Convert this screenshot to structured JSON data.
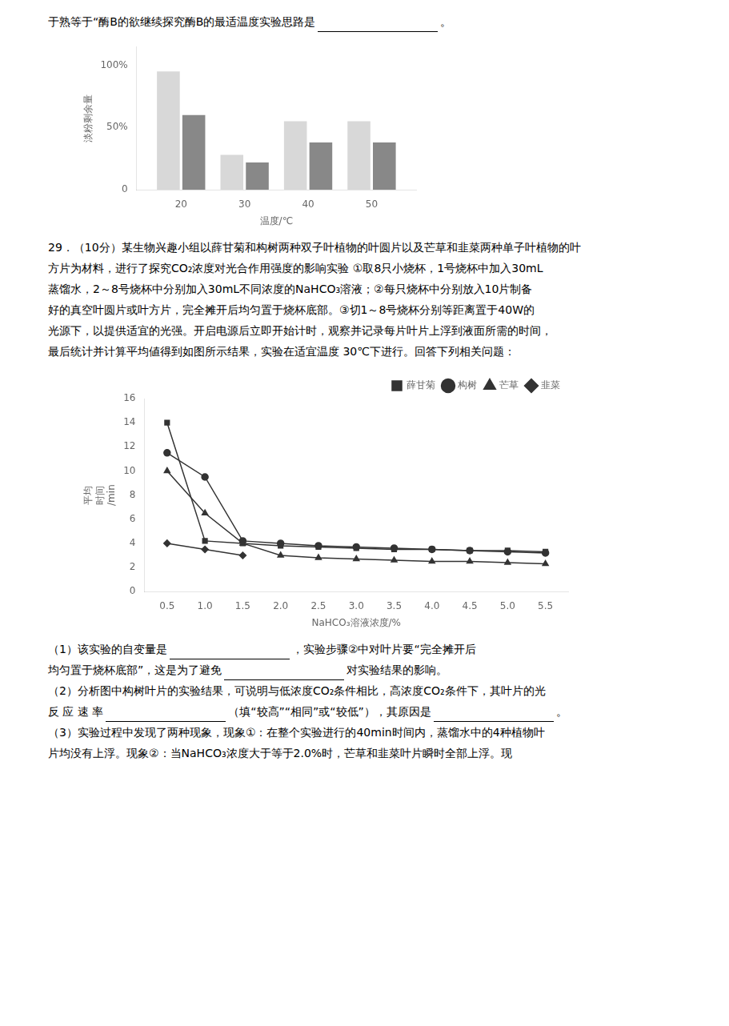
{
  "chart_data": [
    {
      "type": "bar",
      "x": [
        20,
        30,
        40,
        50
      ],
      "series": [
        {
          "color": "#d8d8d8",
          "values": [
            95,
            28,
            55,
            55
          ]
        },
        {
          "color": "#888888",
          "values": [
            60,
            22,
            38,
            38
          ]
        }
      ],
      "xlim": [
        13,
        57
      ],
      "xticks": [
        20,
        30,
        40,
        50
      ],
      "ylim": [
        0,
        115
      ],
      "yticks": [
        0,
        {
          "value": 50,
          "label": "50%"
        },
        {
          "value": 100,
          "label": "100%"
        }
      ],
      "xlabel": "温度/℃",
      "ylabel": "淡粉剩余量",
      "annotations": [
        [
          "于熟等于“酶B的欲继续探究酶B的最适温度实验思路是",
          "。"
        ],
        [
          "29．（10分）某生物兴趣小组以薛甘菊和构树两种双子叶植物的叶圆片以及芒草和韭菜两种单子叶植物的叶"
        ],
        [
          "方片为材料，进行了探究CO₂浓度对光合作用强度的影响实验 ①取8只小烧杯，1号烧杯中加入30mL"
        ],
        [
          "蒸馏水，2～8号烧杯中分别加入30mL不同浓度的NaHCO₃溶液；②每只烧杯中分别放入10片制备"
        ],
        [
          "好的真空叶圆片或叶方片，完全摊开后均匀置于烧杯底部。③切1～8号烧杯分别等距离置于40W的"
        ],
        [
          "光源下，以提供适宜的光强。开启电源后立即开始计时，观察并记录每片叶片上浮到液面所需的时间，"
        ],
        [
          "最后统计并计算平均値得到如图所示结果，实验在适宜温度 30℃下进行。回答下列相关问题："
        ]
      ]
    },
    {
      "type": "line",
      "x": [
        0.5,
        1.0,
        1.5,
        2.0,
        2.5,
        3.0,
        3.5,
        4.0,
        4.5,
        5.0,
        5.5
      ],
      "series": [
        {
          "name": "薛甘菊",
          "color": "#333333",
          "marker": "square",
          "values": [
            14.0,
            4.2,
            4.0,
            3.8,
            3.7,
            3.6,
            3.5,
            3.5,
            3.4,
            3.4,
            3.3
          ]
        },
        {
          "name": "构树",
          "color": "#333333",
          "marker": "circle",
          "values": [
            11.5,
            9.5,
            4.2,
            4.0,
            3.8,
            3.7,
            3.6,
            3.5,
            3.4,
            3.3,
            3.2
          ]
        },
        {
          "name": "芒草",
          "color": "#333333",
          "marker": "triangle",
          "values": [
            10.0,
            6.5,
            4.0,
            3.0,
            2.8,
            2.7,
            2.6,
            2.5,
            2.5,
            2.4,
            2.3
          ]
        },
        {
          "name": "韭菜",
          "color": "#333333",
          "marker": "diamond",
          "values": [
            4.0,
            3.5,
            3.0,
            null,
            null,
            null,
            null,
            null,
            null,
            null,
            null
          ]
        }
      ],
      "xlim": [
        0.2,
        5.8
      ],
      "xticks": [
        0.5,
        {
          "value": 1.0,
          "label": "1.0"
        },
        1.5,
        {
          "value": 2.0,
          "label": "2.0"
        },
        2.5,
        {
          "value": 3.0,
          "label": "3.0"
        },
        3.5,
        {
          "value": 4.0,
          "label": "4.0"
        },
        4.5,
        {
          "value": 5.0,
          "label": "5.0"
        },
        5.5
      ],
      "ylim": [
        0,
        16
      ],
      "yticks": [
        0,
        2,
        4,
        6,
        8,
        10,
        12,
        14,
        16
      ],
      "xlabel": "NaHCO₃溶液浓度/%",
      "ylabel": "平均\n时间\n/min",
      "legend": "upper right",
      "annotations": [
        [
          "（1）该实验的自变量是",
          "，实验步骤②中对叶片要“完全摊开后"
        ],
        [
          "均匀置于烧杯底部”，这是为了避免",
          "对实验结果的影响。"
        ],
        [
          "（2）分析图中构树叶片的实验结果，可说明与低浓度CO₂条件相比，高浓度CO₂条件下，其叶片的光"
        ],
        [
          "反 应 速 率",
          "（填“较高”“相同”或“较低”），其原因是",
          "。"
        ],
        [
          "（3）实验过程中发现了两种现象，现象①：在整个实验进行的40min时间内，蒸馏水中的4种植物叶"
        ],
        [
          "片均没有上浮。现象②：当NaHCO₃浓度大于等于2.0%时，芒草和韭菜叶片瞬时全部上浮。现"
        ]
      ]
    }
  ]
}
